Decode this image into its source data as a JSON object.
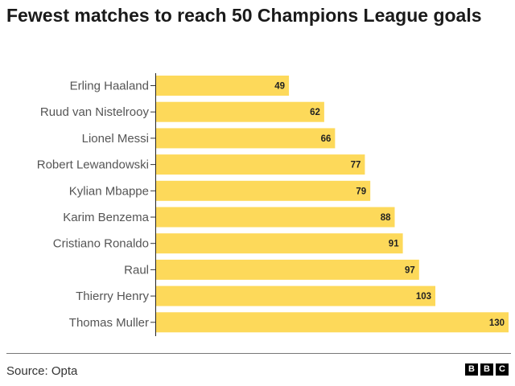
{
  "chart_data": {
    "type": "bar",
    "orientation": "horizontal",
    "title": "Fewest matches to reach 50 Champions League goals",
    "categories": [
      "Erling Haaland",
      "Ruud van Nistelrooy",
      "Lionel Messi",
      "Robert Lewandowski",
      "Kylian Mbappe",
      "Karim Benzema",
      "Cristiano Ronaldo",
      "Raul",
      "Thierry Henry",
      "Thomas Muller"
    ],
    "values": [
      49,
      62,
      66,
      77,
      79,
      88,
      91,
      97,
      103,
      130
    ],
    "xlim": [
      0,
      130
    ],
    "grid": false,
    "data_labels": true,
    "bar_color": "#fdd95a"
  },
  "footer": {
    "source": "Source: Opta",
    "logo": [
      "B",
      "B",
      "C"
    ]
  }
}
